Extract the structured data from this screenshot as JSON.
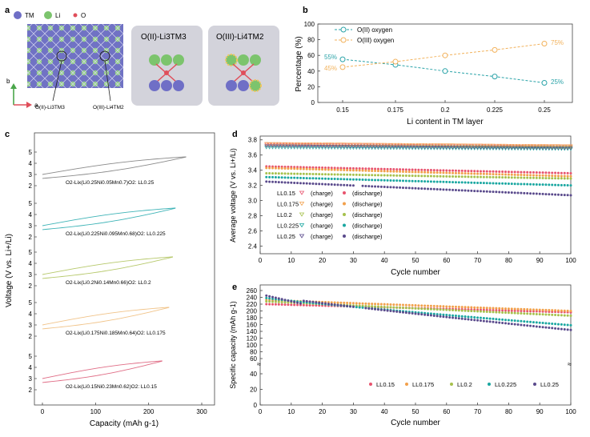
{
  "colors": {
    "tm": "#6f6fc6",
    "li": "#7cc46d",
    "o": "#e04e5a",
    "o2_series": "#2aa3a8",
    "o3_series": "#f2b25c",
    "box_bg": "#d3d3db",
    "ll015": "#e8536e",
    "ll0175": "#f2a04b",
    "ll02": "#a6c14c",
    "ll0225": "#1aa7a1",
    "ll025": "#5a4a8c"
  },
  "panel_a": {
    "label": "a",
    "legend": [
      "TM",
      "Li",
      "O"
    ],
    "axis_b": "b",
    "axis_a": "a",
    "callout_left": "O(II)-Li3TM3",
    "callout_right": "O(III)-Li4TM2",
    "box1_title": "O(II)-Li3TM3",
    "box2_title": "O(III)-Li4TM2"
  },
  "panel_c": {
    "label": "c",
    "ylabel": "Voltage (V vs. Li+/Li)",
    "xlabel": "Capacity (mAh g-1)",
    "xticks": [
      "0",
      "100",
      "200",
      "300"
    ],
    "curves": [
      {
        "name": "O2-Lix(Li0.25Ni0.05Mn0.7)O2: LL0.25",
        "cap_max": 270,
        "color_key": "#8a8a8a"
      },
      {
        "name": "O2-Lix(Li0.225Ni0.095Mn0.68)O2: LL0.225",
        "cap_max": 250,
        "color_key": "#3fb4b7"
      },
      {
        "name": "O2-Lix(Li0.2Ni0.14Mn0.66)O2: LL0.2",
        "cap_max": 245,
        "color_key": "#b7c96c"
      },
      {
        "name": "O2-Lix(Li0.175Ni0.185Mn0.64)O2: LL0.175",
        "cap_max": 238,
        "color_key": "#f1c48a"
      },
      {
        "name": "O2-Lix(Li0.15Ni0.23Mn0.62)O2: LL0.15",
        "cap_max": 225,
        "color_key": "#e06d86"
      }
    ]
  },
  "chart_data": [
    {
      "panel": "b",
      "type": "line",
      "x": [
        0.15,
        0.175,
        0.2,
        0.225,
        0.25
      ],
      "series": [
        {
          "name": "O(II) oxygen",
          "values": [
            55,
            48,
            40,
            33,
            25
          ]
        },
        {
          "name": "O(III) oxygen",
          "values": [
            45,
            52,
            60,
            67,
            75
          ]
        }
      ],
      "xlabel": "Li content in TM layer",
      "ylabel": "Percentage (%)",
      "ylim": [
        0,
        100
      ],
      "yticks": [
        0,
        20,
        40,
        60,
        80,
        100
      ],
      "xticks": [
        "0.15",
        "0.175",
        "0.2",
        "0.225",
        "0.25"
      ],
      "annotations": [
        "55%",
        "45%",
        "75%",
        "25%"
      ],
      "legend": [
        "O(II) oxygen",
        "O(III) oxygen"
      ]
    },
    {
      "panel": "d",
      "type": "scatter",
      "xlabel": "Cycle number",
      "ylabel": "Average voltage (V vs. Li+/Li)",
      "xlim": [
        0,
        100
      ],
      "ylim": [
        2.3,
        3.85
      ],
      "xticks": [
        0,
        10,
        20,
        30,
        40,
        50,
        60,
        70,
        80,
        90,
        100
      ],
      "yticks": [
        "2.4",
        "2.6",
        "2.8",
        "3.0",
        "3.2",
        "3.4",
        "3.6",
        "3.8"
      ],
      "legend_rows": [
        "LL0.15",
        "LL0.175",
        "LL0.2",
        "LL0.225",
        "LL0.25"
      ],
      "legend_charge": "(charge)",
      "legend_discharge": "(discharge)",
      "series": [
        {
          "name": "LL0.15 charge",
          "start": 3.74,
          "end": 3.71
        },
        {
          "name": "LL0.175 charge",
          "start": 3.75,
          "end": 3.72
        },
        {
          "name": "LL0.2 charge",
          "start": 3.72,
          "end": 3.7
        },
        {
          "name": "LL0.225 charge",
          "start": 3.7,
          "end": 3.68
        },
        {
          "name": "LL0.25 charge",
          "start": 3.72,
          "end": 3.69
        },
        {
          "name": "LL0.15 discharge",
          "start": 3.45,
          "end": 3.36
        },
        {
          "name": "LL0.175 discharge",
          "start": 3.43,
          "end": 3.32
        },
        {
          "name": "LL0.2 discharge",
          "start": 3.36,
          "end": 3.29
        },
        {
          "name": "LL0.225 discharge",
          "start": 3.31,
          "end": 3.2
        },
        {
          "name": "LL0.25 discharge",
          "start": 3.25,
          "end": 3.07
        }
      ]
    },
    {
      "panel": "e",
      "type": "scatter",
      "xlabel": "Cycle number",
      "ylabel": "Specific capacity (mAh g-1)",
      "xlim": [
        0,
        100
      ],
      "xticks": [
        0,
        10,
        20,
        30,
        40,
        50,
        60,
        70,
        80,
        90,
        100
      ],
      "yticks_upper": [
        "60",
        "80",
        "100",
        "120",
        "140",
        "160",
        "180",
        "200",
        "220",
        "240",
        "260"
      ],
      "yticks_lower": [
        "0",
        "20",
        "40"
      ],
      "legend": [
        "LL0.15",
        "LL0.175",
        "LL0.2",
        "LL0.225",
        "LL0.25"
      ],
      "series": [
        {
          "name": "LL0.15",
          "start": 220,
          "end": 196
        },
        {
          "name": "LL0.175",
          "start": 232,
          "end": 200
        },
        {
          "name": "LL0.2",
          "start": 228,
          "end": 186
        },
        {
          "name": "LL0.225",
          "start": 238,
          "end": 158
        },
        {
          "name": "LL0.25",
          "start": 245,
          "end": 144
        }
      ]
    }
  ]
}
